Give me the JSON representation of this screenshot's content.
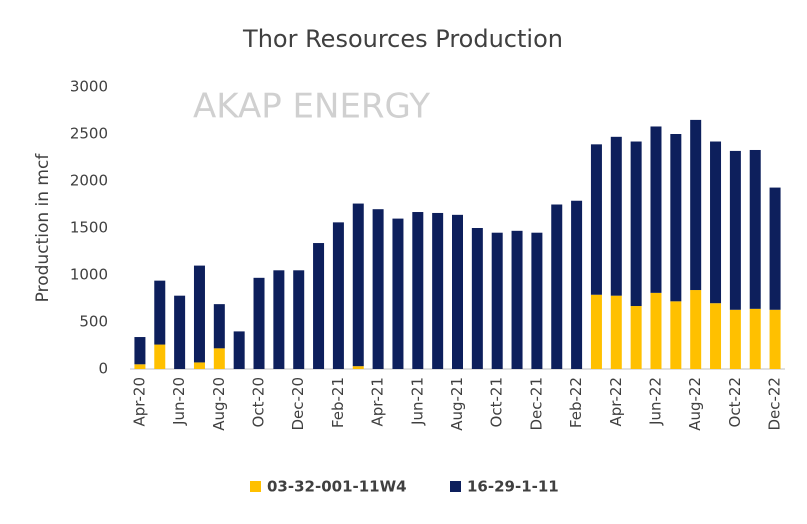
{
  "chart_data": {
    "type": "stacked_bar",
    "title": "Thor Resources Production",
    "annotation": "AKAP ENERGY",
    "y_label": "Production in mcf",
    "categories": [
      "Apr-20",
      null,
      "Jun-20",
      null,
      "Aug-20",
      null,
      "Oct-20",
      null,
      "Dec-20",
      null,
      "Feb-21",
      null,
      "Apr-21",
      null,
      "Jun-21",
      null,
      "Aug-21",
      null,
      "Oct-21",
      null,
      "Dec-21",
      null,
      "Feb-22",
      null,
      "Apr-22",
      null,
      "Jun-22",
      null,
      "Aug-22",
      null,
      "Oct-22",
      null,
      "Dec-22"
    ],
    "series": [
      {
        "name": "03-32-001-11W4",
        "color": "#ffc000",
        "values": [
          50,
          260,
          0,
          70,
          220,
          0,
          0,
          0,
          0,
          0,
          0,
          30,
          0,
          0,
          0,
          0,
          0,
          0,
          0,
          0,
          0,
          0,
          0,
          790,
          780,
          670,
          810,
          720,
          840,
          700,
          630,
          640,
          630
        ]
      },
      {
        "name": "16-29-1-11",
        "color": "#0d1f5c",
        "values": [
          290,
          680,
          780,
          1030,
          470,
          400,
          970,
          1050,
          1050,
          1340,
          1560,
          1730,
          1700,
          1600,
          1670,
          1660,
          1640,
          1500,
          1450,
          1470,
          1450,
          1750,
          1790,
          1600,
          1690,
          1750,
          1770,
          1780,
          1810,
          1720,
          1690,
          1690,
          1300
        ]
      }
    ],
    "ylim": [
      0,
      3000
    ],
    "yticks": [
      0,
      500,
      1000,
      1500,
      2000,
      2500,
      3000
    ],
    "grid": false,
    "legend": "bottom"
  }
}
